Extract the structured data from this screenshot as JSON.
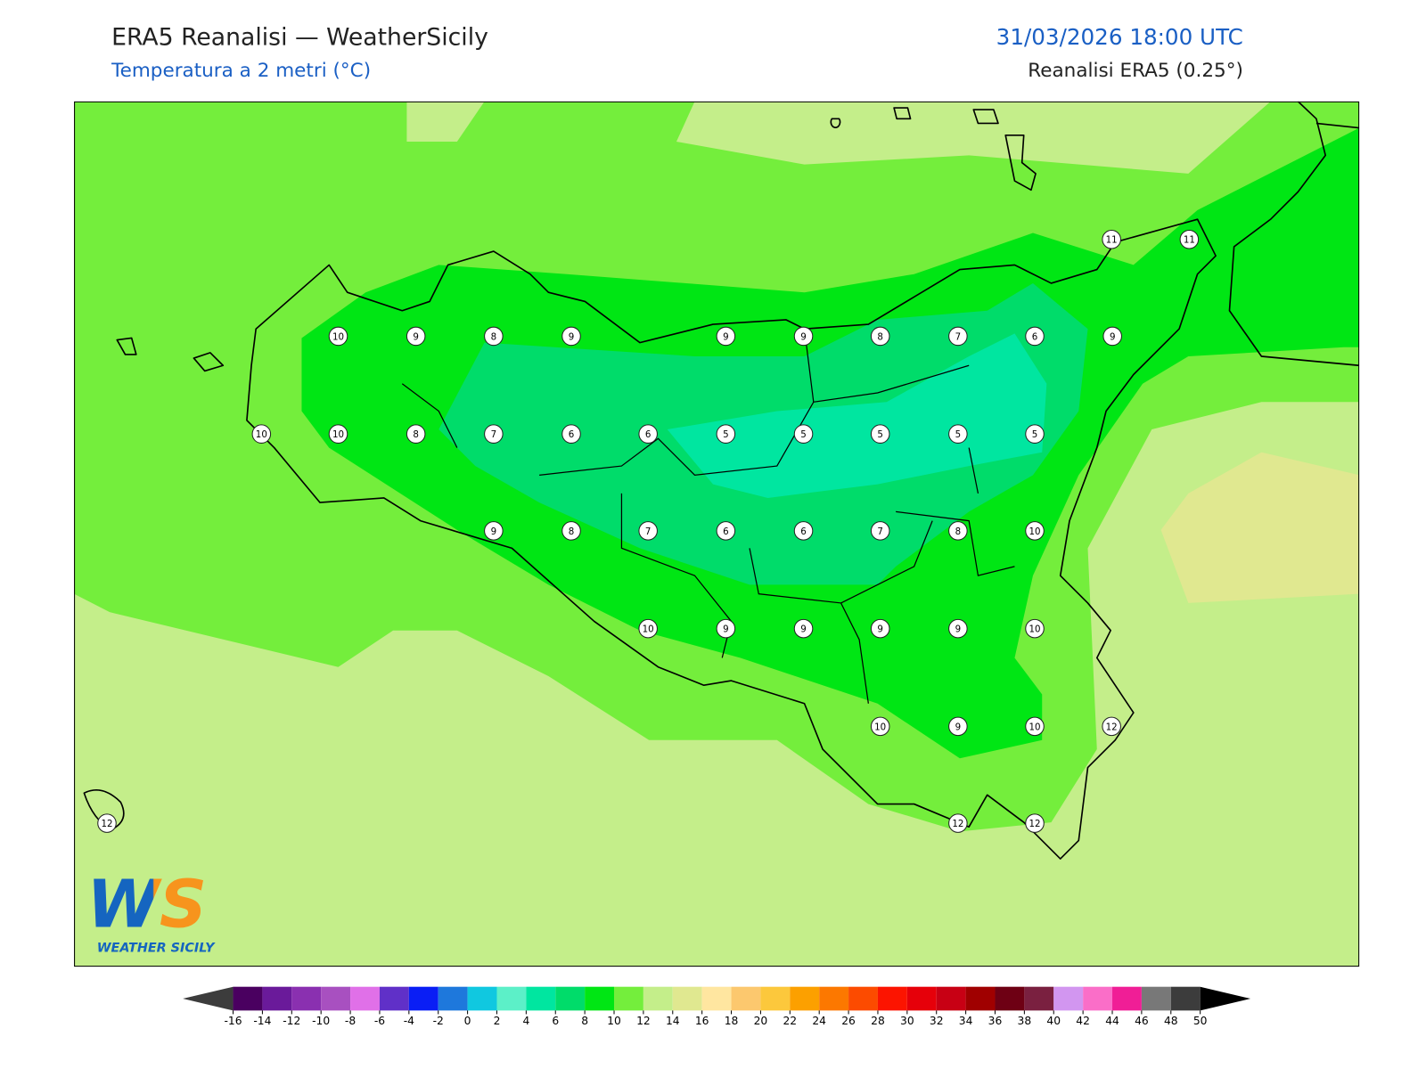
{
  "header": {
    "title": "ERA5 Reanalisi — WeatherSicily",
    "subtitle": "Temperatura a 2 metri (°C)",
    "datetime": "31/03/2026 18:00 UTC",
    "source": "Reanalisi ERA5 (0.25°)"
  },
  "stations": [
    11,
    11,
    10,
    9,
    8,
    9,
    9,
    9,
    8,
    7,
    6,
    9,
    10,
    10,
    8,
    7,
    6,
    6,
    5,
    5,
    5,
    5,
    5,
    9,
    8,
    7,
    6,
    6,
    7,
    8,
    10,
    10,
    9,
    9,
    9,
    9,
    10,
    10,
    9,
    10,
    12,
    12,
    12,
    12
  ],
  "logo": {
    "letters": "WS",
    "name": "WEATHER SICILY"
  },
  "colorbar": {
    "ticks": [
      -16,
      -14,
      -12,
      -10,
      -8,
      -6,
      -4,
      -2,
      0,
      2,
      4,
      6,
      8,
      10,
      12,
      14,
      16,
      18,
      20,
      22,
      24,
      26,
      28,
      30,
      32,
      34,
      36,
      38,
      40,
      42,
      44,
      46,
      48,
      50
    ],
    "colors": [
      "#4a0060",
      "#6a1a9a",
      "#8a30b0",
      "#a850c0",
      "#e070e8",
      "#6030c8",
      "#0a1ef5",
      "#1e78dc",
      "#10c8e0",
      "#5cf0c8",
      "#00e6a0",
      "#00dc6a",
      "#00e614",
      "#74ee3c",
      "#c4ee8a",
      "#e0e890",
      "#ffe6a0",
      "#fcc86e",
      "#fcc83c",
      "#fca000",
      "#fc7800",
      "#fc4b00",
      "#fc1400",
      "#e6000a",
      "#c80014",
      "#a00000",
      "#6e0014",
      "#7a2040",
      "#d296f0",
      "#fa6ec8",
      "#f01e96",
      "#787878",
      "#3c3c3c"
    ],
    "under_color": "#3c3c3c",
    "over_color": "#000000"
  }
}
